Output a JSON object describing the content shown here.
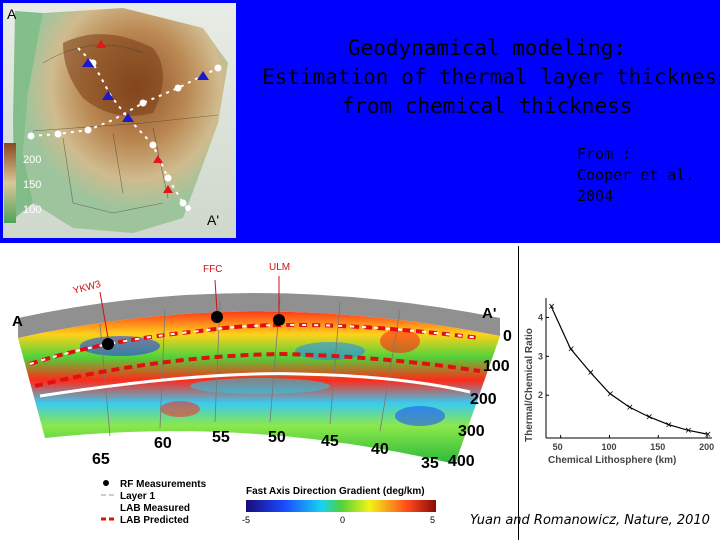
{
  "slide": {
    "title_lines": [
      "Geodynamical modeling:",
      "Estimation of thermal layer thickness",
      "from chemical thickness"
    ],
    "citation_lines": [
      "From :",
      "Cooper et al.",
      "2004"
    ],
    "figure_citation": "Yuan and Romanowicz, Nature, 2010",
    "colors": {
      "band": "#0000ff",
      "rf_marker": "#000000",
      "lab_measured": "#ffffff",
      "lab_predicted": "#e01010",
      "layer1": "#cccccc"
    }
  },
  "map": {
    "corner_labels": [
      "A",
      "A'"
    ],
    "scale_labels": [
      "200",
      "150",
      "100"
    ]
  },
  "section": {
    "corner_labels": [
      "A",
      "A'"
    ],
    "station_labels": [
      "YKW3",
      "FFC",
      "ULM"
    ],
    "depth_labels": [
      "0",
      "100",
      "200",
      "300",
      "400"
    ],
    "longitude_labels": [
      "65",
      "60",
      "55",
      "50",
      "45",
      "40",
      "35"
    ]
  },
  "legend": {
    "items": [
      "RF Measurements",
      "Layer 1",
      "LAB Measured",
      "LAB Predicted"
    ],
    "colorbar_title": "Fast Axis Direction Gradient (deg/km)",
    "colorbar_ticks": [
      "-5",
      "0",
      "5"
    ]
  },
  "chart_data": {
    "type": "line",
    "xlabel": "Chemical Lithosphere (km)",
    "ylabel": "Thermal/Chemical Ratio",
    "x": [
      40,
      60,
      80,
      100,
      120,
      140,
      160,
      180,
      200
    ],
    "series": [
      {
        "values": [
          4.3,
          3.2,
          2.6,
          2.05,
          1.7,
          1.45,
          1.25,
          1.1,
          1.0
        ]
      }
    ],
    "xticks": [
      "50",
      "100",
      "150",
      "200"
    ],
    "yticks": [
      "2",
      "3",
      "4"
    ],
    "xlim": [
      35,
      205
    ],
    "ylim": [
      0.9,
      4.5
    ]
  }
}
